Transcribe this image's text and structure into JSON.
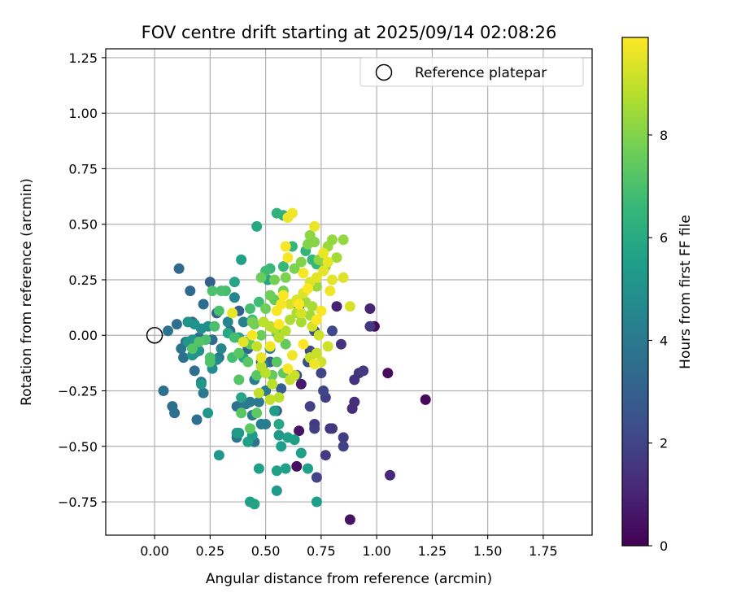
{
  "chart_data": {
    "type": "scatter",
    "title": "FOV centre drift starting at 2025/09/14 02:08:26",
    "xlabel": "Angular distance from reference (arcmin)",
    "ylabel": "Rotation from reference (arcmin)",
    "xlim": [
      -0.22,
      1.97
    ],
    "ylim": [
      -0.9,
      1.29
    ],
    "xticks": [
      0.0,
      0.25,
      0.5,
      0.75,
      1.0,
      1.25,
      1.5,
      1.75
    ],
    "xtick_labels": [
      "0.00",
      "0.25",
      "0.50",
      "0.75",
      "1.00",
      "1.25",
      "1.50",
      "1.75"
    ],
    "yticks": [
      -0.75,
      -0.5,
      -0.25,
      0.0,
      0.25,
      0.5,
      0.75,
      1.0,
      1.25
    ],
    "ytick_labels": [
      "−0.75",
      "−0.50",
      "−0.25",
      "0.00",
      "0.25",
      "0.50",
      "0.75",
      "1.00",
      "1.25"
    ],
    "grid": true,
    "legend": {
      "placement": "top-right",
      "entries": [
        {
          "label": "Reference platepar",
          "marker": "open-circle"
        }
      ]
    },
    "reference_point": {
      "x": 0.0,
      "y": 0.0
    },
    "colorbar": {
      "label": "Hours from first FF file",
      "colormap": "viridis",
      "range": [
        0,
        9.9
      ],
      "ticks": [
        0,
        2,
        4,
        6,
        8
      ],
      "tick_labels": [
        "0",
        "2",
        "4",
        "6",
        "8"
      ]
    },
    "colormap_stops": [
      "#440154",
      "#482878",
      "#3e4a89",
      "#31688e",
      "#26828e",
      "#1f9e89",
      "#35b779",
      "#6ece58",
      "#b5de2b",
      "#fde725"
    ],
    "points": [
      [
        1.22,
        -0.29,
        0.2
      ],
      [
        0.99,
        0.04,
        0.3
      ],
      [
        1.05,
        -0.17,
        0.3
      ],
      [
        0.88,
        -0.83,
        0.5
      ],
      [
        0.64,
        -0.59,
        0.4
      ],
      [
        0.65,
        -0.43,
        0.5
      ],
      [
        0.66,
        -0.22,
        0.6
      ],
      [
        0.82,
        0.13,
        0.9
      ],
      [
        0.97,
        0.12,
        1.0
      ],
      [
        1.06,
        -0.63,
        1.2
      ],
      [
        0.9,
        -0.3,
        1.3
      ],
      [
        0.89,
        -0.33,
        1.3
      ],
      [
        0.9,
        -0.2,
        1.4
      ],
      [
        0.92,
        -0.17,
        1.5
      ],
      [
        0.84,
        -0.04,
        1.5
      ],
      [
        0.97,
        0.04,
        1.6
      ],
      [
        0.79,
        -0.42,
        1.5
      ],
      [
        0.8,
        -0.42,
        1.6
      ],
      [
        0.77,
        -0.28,
        1.8
      ],
      [
        0.72,
        -0.4,
        1.7
      ],
      [
        0.72,
        -0.42,
        1.8
      ],
      [
        0.77,
        -0.54,
        1.7
      ],
      [
        0.85,
        -0.5,
        1.9
      ],
      [
        0.85,
        -0.46,
        1.8
      ],
      [
        0.7,
        -0.32,
        1.9
      ],
      [
        0.75,
        -0.17,
        2.0
      ],
      [
        0.76,
        -0.25,
        2.1
      ],
      [
        0.7,
        -0.07,
        2.2
      ],
      [
        0.8,
        0.02,
        2.2
      ],
      [
        0.69,
        -0.12,
        2.3
      ],
      [
        0.64,
        -0.18,
        2.3
      ],
      [
        0.73,
        -0.64,
        2.0
      ],
      [
        0.94,
        -0.16,
        1.7
      ],
      [
        0.72,
        0.02,
        2.5
      ],
      [
        0.65,
        0.13,
        2.6
      ],
      [
        0.55,
        -0.34,
        2.8
      ],
      [
        0.57,
        -0.24,
        3.0
      ],
      [
        0.52,
        -0.12,
        3.0
      ],
      [
        0.48,
        -0.12,
        3.2
      ],
      [
        0.42,
        -0.06,
        3.2
      ],
      [
        0.38,
        0.11,
        3.0
      ],
      [
        0.28,
        0.1,
        3.1
      ],
      [
        0.34,
        0.02,
        3.3
      ],
      [
        0.25,
        0.24,
        3.0
      ],
      [
        0.16,
        0.2,
        3.3
      ],
      [
        0.11,
        0.3,
        3.3
      ],
      [
        0.22,
        0.14,
        3.5
      ],
      [
        0.26,
        -0.02,
        3.4
      ],
      [
        0.2,
        -0.01,
        3.5
      ],
      [
        0.17,
        0.06,
        3.5
      ],
      [
        0.1,
        0.05,
        3.6
      ],
      [
        0.06,
        0.02,
        3.8
      ],
      [
        0.04,
        -0.25,
        3.7
      ],
      [
        0.08,
        -0.32,
        3.6
      ],
      [
        0.09,
        -0.35,
        3.7
      ],
      [
        0.14,
        -0.03,
        3.7
      ],
      [
        0.12,
        -0.06,
        3.8
      ],
      [
        0.13,
        -0.1,
        3.6
      ],
      [
        0.18,
        -0.16,
        3.6
      ],
      [
        0.19,
        -0.38,
        3.6
      ],
      [
        0.21,
        -0.21,
        3.9
      ],
      [
        0.22,
        -0.26,
        4.0
      ],
      [
        0.29,
        -0.1,
        3.9
      ],
      [
        0.37,
        -0.32,
        3.7
      ],
      [
        0.37,
        -0.46,
        3.8
      ],
      [
        0.45,
        -0.48,
        3.8
      ],
      [
        0.43,
        -0.3,
        4.0
      ],
      [
        0.44,
        -0.36,
        4.1
      ],
      [
        0.41,
        -0.31,
        4.0
      ],
      [
        0.48,
        -0.4,
        4.1
      ],
      [
        0.5,
        -0.4,
        4.2
      ],
      [
        0.47,
        -0.3,
        4.0
      ],
      [
        0.5,
        -0.25,
        4.0
      ],
      [
        0.45,
        -0.2,
        4.3
      ],
      [
        0.49,
        -0.13,
        4.3
      ],
      [
        0.52,
        -0.06,
        4.4
      ],
      [
        0.4,
        0.06,
        4.4
      ],
      [
        0.33,
        0.06,
        4.5
      ],
      [
        0.36,
        0.17,
        4.5
      ],
      [
        0.3,
        -0.06,
        4.6
      ],
      [
        0.28,
        -0.11,
        4.6
      ],
      [
        0.26,
        -0.15,
        4.8
      ],
      [
        0.24,
        0.04,
        4.9
      ],
      [
        0.21,
        0.03,
        4.9
      ],
      [
        0.2,
        -0.07,
        5.0
      ],
      [
        0.18,
        0.05,
        5.0
      ],
      [
        0.15,
        0.06,
        5.0
      ],
      [
        0.19,
        -0.06,
        5.1
      ],
      [
        0.17,
        -0.02,
        5.1
      ],
      [
        0.17,
        -0.09,
        5.2
      ],
      [
        0.18,
        -0.08,
        5.1
      ],
      [
        0.15,
        -0.03,
        5.2
      ],
      [
        0.21,
        -0.22,
        5.2
      ],
      [
        0.24,
        -0.35,
        5.2
      ],
      [
        0.29,
        -0.54,
        5.2
      ],
      [
        0.37,
        -0.44,
        5.2
      ],
      [
        0.38,
        -0.44,
        5.4
      ],
      [
        0.42,
        -0.48,
        5.6
      ],
      [
        0.44,
        -0.45,
        5.4
      ],
      [
        0.54,
        -0.34,
        5.5
      ],
      [
        0.56,
        -0.45,
        5.3
      ],
      [
        0.6,
        -0.46,
        5.6
      ],
      [
        0.63,
        -0.47,
        5.5
      ],
      [
        0.66,
        -0.53,
        5.6
      ],
      [
        0.69,
        -0.6,
        5.5
      ],
      [
        0.59,
        -0.6,
        5.6
      ],
      [
        0.57,
        -0.5,
        5.5
      ],
      [
        0.55,
        -0.61,
        5.6
      ],
      [
        0.55,
        -0.7,
        5.4
      ],
      [
        0.47,
        -0.6,
        5.6
      ],
      [
        0.43,
        -0.75,
        5.6
      ],
      [
        0.45,
        -0.76,
        5.7
      ],
      [
        0.73,
        -0.75,
        5.5
      ],
      [
        0.56,
        -0.4,
        5.9
      ],
      [
        0.39,
        -0.28,
        5.8
      ],
      [
        0.4,
        -0.1,
        5.8
      ],
      [
        0.38,
        -0.01,
        5.9
      ],
      [
        0.33,
        0.01,
        5.9
      ],
      [
        0.36,
        0.24,
        5.8
      ],
      [
        0.39,
        0.34,
        5.6
      ],
      [
        0.46,
        0.49,
        6.0
      ],
      [
        0.51,
        0.25,
        5.8
      ],
      [
        0.58,
        0.54,
        6.3
      ],
      [
        0.55,
        0.55,
        6.4
      ],
      [
        0.62,
        0.4,
        6.5
      ],
      [
        0.68,
        0.38,
        6.5
      ],
      [
        0.71,
        0.34,
        6.6
      ],
      [
        0.73,
        0.32,
        6.6
      ],
      [
        0.58,
        0.31,
        6.6
      ],
      [
        0.52,
        0.3,
        6.6
      ],
      [
        0.5,
        0.29,
        6.8
      ],
      [
        0.47,
        0.15,
        6.8
      ],
      [
        0.44,
        0.07,
        6.7
      ],
      [
        0.43,
        0.12,
        6.9
      ],
      [
        0.41,
        -0.03,
        6.8
      ],
      [
        0.36,
        -0.01,
        6.9
      ],
      [
        0.35,
        -0.1,
        6.9
      ],
      [
        0.32,
        0.2,
        6.9
      ],
      [
        0.29,
        0.11,
        7.0
      ],
      [
        0.3,
        0.2,
        7.0
      ],
      [
        0.26,
        0.2,
        7.1
      ],
      [
        0.27,
        0.04,
        7.0
      ],
      [
        0.23,
        -0.02,
        7.0
      ],
      [
        0.25,
        -0.1,
        7.1
      ],
      [
        0.25,
        -0.12,
        7.1
      ],
      [
        0.2,
        -0.03,
        7.2
      ],
      [
        0.17,
        -0.06,
        7.2
      ],
      [
        0.38,
        -0.08,
        7.3
      ],
      [
        0.38,
        -0.2,
        7.2
      ],
      [
        0.39,
        -0.35,
        7.3
      ],
      [
        0.42,
        -0.12,
        7.3
      ],
      [
        0.43,
        -0.04,
        7.4
      ],
      [
        0.46,
        -0.18,
        7.3
      ],
      [
        0.46,
        -0.35,
        7.4
      ],
      [
        0.43,
        -0.42,
        7.4
      ],
      [
        0.53,
        -0.18,
        7.5
      ],
      [
        0.55,
        -0.12,
        7.3
      ],
      [
        0.58,
        -0.17,
        7.4
      ],
      [
        0.59,
        -0.04,
        7.5
      ],
      [
        0.55,
        0.01,
        7.6
      ],
      [
        0.54,
        0.16,
        7.5
      ],
      [
        0.52,
        0.18,
        7.7
      ],
      [
        0.5,
        0.12,
        7.7
      ],
      [
        0.48,
        0.0,
        7.6
      ],
      [
        0.45,
        0.05,
        7.7
      ],
      [
        0.44,
        0.06,
        7.8
      ],
      [
        0.48,
        0.26,
        7.6
      ],
      [
        0.54,
        0.25,
        7.8
      ],
      [
        0.59,
        0.26,
        7.9
      ],
      [
        0.58,
        0.2,
        7.8
      ],
      [
        0.63,
        0.3,
        7.9
      ],
      [
        0.66,
        0.33,
        8.0
      ],
      [
        0.69,
        0.41,
        8.0
      ],
      [
        0.7,
        0.45,
        8.2
      ],
      [
        0.72,
        0.42,
        8.1
      ],
      [
        0.74,
        0.34,
        8.2
      ],
      [
        0.77,
        0.31,
        8.2
      ],
      [
        0.78,
        0.4,
        8.4
      ],
      [
        0.8,
        0.43,
        8.3
      ],
      [
        0.85,
        0.43,
        8.3
      ],
      [
        0.82,
        0.35,
        8.5
      ],
      [
        0.73,
        0.22,
        8.4
      ],
      [
        0.68,
        0.15,
        8.5
      ],
      [
        0.71,
        0.13,
        8.6
      ],
      [
        0.7,
        0.09,
        8.5
      ],
      [
        0.66,
        0.06,
        8.6
      ],
      [
        0.64,
        0.1,
        8.7
      ],
      [
        0.61,
        0.07,
        8.7
      ],
      [
        0.59,
        0.02,
        8.8
      ],
      [
        0.56,
        -0.01,
        8.8
      ],
      [
        0.54,
        0.03,
        8.8
      ],
      [
        0.52,
        0.04,
        8.9
      ],
      [
        0.49,
        0.06,
        8.9
      ],
      [
        0.46,
        -0.05,
        9.0
      ],
      [
        0.48,
        -0.14,
        8.9
      ],
      [
        0.5,
        -0.17,
        8.9
      ],
      [
        0.53,
        -0.22,
        8.9
      ],
      [
        0.56,
        -0.28,
        8.9
      ],
      [
        0.47,
        -0.26,
        9.0
      ],
      [
        0.52,
        -0.29,
        9.0
      ],
      [
        0.61,
        -0.2,
        9.0
      ],
      [
        0.63,
        -0.18,
        9.1
      ],
      [
        0.7,
        -0.1,
        9.1
      ],
      [
        0.73,
        -0.08,
        9.1
      ],
      [
        0.75,
        -0.12,
        9.2
      ],
      [
        0.78,
        -0.05,
        9.2
      ],
      [
        0.74,
        0.0,
        9.2
      ],
      [
        0.71,
        0.04,
        9.3
      ],
      [
        0.66,
        0.1,
        9.3
      ],
      [
        0.61,
        0.14,
        9.3
      ],
      [
        0.64,
        0.16,
        9.4
      ],
      [
        0.67,
        0.19,
        9.4
      ],
      [
        0.7,
        0.24,
        9.4
      ],
      [
        0.73,
        0.26,
        9.5
      ],
      [
        0.76,
        0.29,
        9.5
      ],
      [
        0.8,
        0.25,
        9.5
      ],
      [
        0.85,
        0.26,
        9.4
      ],
      [
        0.88,
        0.13,
        9.3
      ],
      [
        0.78,
        0.33,
        9.6
      ],
      [
        0.76,
        0.37,
        9.6
      ],
      [
        0.72,
        0.49,
        9.6
      ],
      [
        0.6,
        0.53,
        9.7
      ],
      [
        0.62,
        0.55,
        9.7
      ],
      [
        0.59,
        0.4,
        9.8
      ],
      [
        0.6,
        0.35,
        9.8
      ],
      [
        0.57,
        0.14,
        9.8
      ],
      [
        0.56,
        0.05,
        9.9
      ],
      [
        0.55,
        0.11,
        9.8
      ],
      [
        0.58,
        0.18,
        9.9
      ],
      [
        0.65,
        0.14,
        9.9
      ],
      [
        0.69,
        0.21,
        9.9
      ],
      [
        0.52,
        -0.05,
        9.7
      ],
      [
        0.48,
        -0.1,
        9.6
      ],
      [
        0.4,
        -0.03,
        9.5
      ],
      [
        0.35,
        0.1,
        9.6
      ],
      [
        0.44,
        0.0,
        9.8
      ],
      [
        0.6,
        -0.15,
        9.8
      ],
      [
        0.62,
        -0.09,
        9.7
      ],
      [
        0.72,
        -0.13,
        9.7
      ],
      [
        0.67,
        -0.04,
        9.9
      ],
      [
        0.73,
        0.07,
        9.9
      ],
      [
        0.75,
        0.11,
        9.8
      ],
      [
        0.79,
        0.2,
        9.7
      ],
      [
        0.67,
        0.28,
        9.8
      ]
    ]
  }
}
